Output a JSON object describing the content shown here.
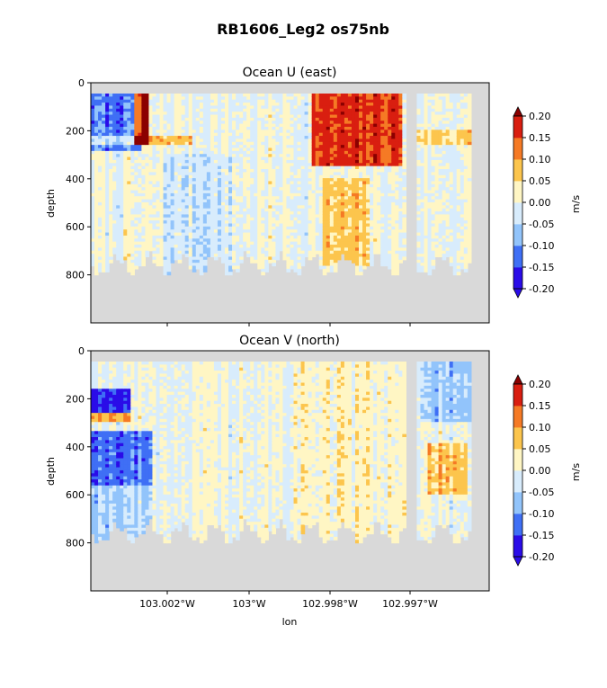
{
  "figure": {
    "title": "RB1606_Leg2 os75nb"
  },
  "chart_data": [
    {
      "type": "heatmap",
      "title": "Ocean U (east)",
      "ylabel": "depth",
      "xlabel": "",
      "ylim": [
        1000,
        0
      ],
      "yticks": [
        "0",
        "200",
        "400",
        "600",
        "800"
      ],
      "ytick_values": [
        0,
        200,
        400,
        600,
        800
      ],
      "xticks": [],
      "colorbar": {
        "label": "m/s",
        "levels": [
          -0.2,
          -0.15,
          -0.1,
          -0.05,
          0.0,
          0.05,
          0.1,
          0.15,
          0.2
        ],
        "tick_labels": [
          "-0.20",
          "-0.15",
          "-0.10",
          "-0.05",
          "0.00",
          "0.05",
          "0.10",
          "0.15",
          "0.20"
        ],
        "colors": [
          "#2a0ce8",
          "#3f6ff5",
          "#92c4fb",
          "#d8ecfc",
          "#fff6c4",
          "#fcc54d",
          "#f57a25",
          "#d91e10"
        ],
        "under_color": "#2a0ce8",
        "over_color": "#8b0000"
      },
      "nodata_color": "#d9d9d9"
    },
    {
      "type": "heatmap",
      "title": "Ocean V (north)",
      "ylabel": "depth",
      "xlabel": "lon",
      "ylim": [
        1000,
        0
      ],
      "yticks": [
        "0",
        "200",
        "400",
        "600",
        "800"
      ],
      "ytick_values": [
        0,
        200,
        400,
        600,
        800
      ],
      "xticks": [
        "103.002°W",
        "103°W",
        "102.998°W",
        "102.997°W"
      ],
      "colorbar": {
        "label": "m/s",
        "levels": [
          -0.2,
          -0.15,
          -0.1,
          -0.05,
          0.0,
          0.05,
          0.1,
          0.15,
          0.2
        ],
        "tick_labels": [
          "-0.20",
          "-0.15",
          "-0.10",
          "-0.05",
          "0.00",
          "0.05",
          "0.10",
          "0.15",
          "0.20"
        ],
        "colors": [
          "#2a0ce8",
          "#3f6ff5",
          "#92c4fb",
          "#d8ecfc",
          "#fff6c4",
          "#fcc54d",
          "#f57a25",
          "#d91e10"
        ],
        "under_color": "#2a0ce8",
        "over_color": "#8b0000"
      },
      "nodata_color": "#d9d9d9"
    }
  ]
}
